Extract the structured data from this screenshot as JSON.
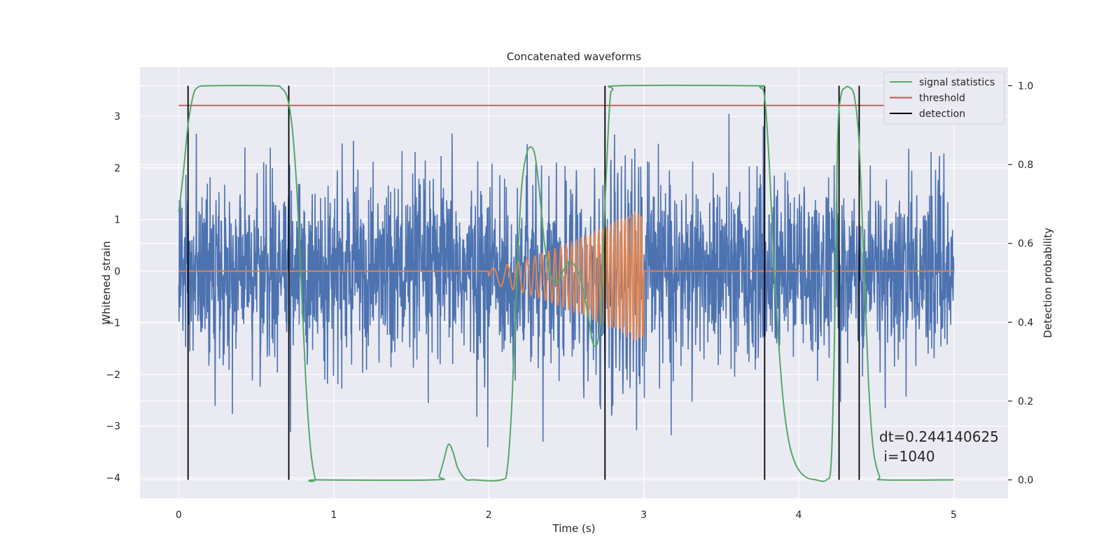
{
  "chart_data": {
    "type": "line",
    "title": "Concatenated waveforms",
    "xlabel": "Time (s)",
    "ylabel": "Whitened strain",
    "y2label": "Detection probability",
    "xlim": [
      -0.25,
      5.35
    ],
    "ylim": [
      -4.4,
      3.95
    ],
    "y2lim": [
      -0.047,
      1.047
    ],
    "xticks": [
      0,
      1,
      2,
      3,
      4,
      5
    ],
    "xtick_labels": [
      "0",
      "1",
      "2",
      "3",
      "4",
      "5"
    ],
    "yticks": [
      -4,
      -3,
      -2,
      -1,
      0,
      1,
      2,
      3
    ],
    "ytick_labels": [
      "−4",
      "−3",
      "−2",
      "−1",
      "0",
      "1",
      "2",
      "3"
    ],
    "y2ticks": [
      0.0,
      0.2,
      0.4,
      0.6,
      0.8,
      1.0
    ],
    "y2tick_labels": [
      "0.0",
      "0.2",
      "0.4",
      "0.6",
      "0.8",
      "1.0"
    ],
    "grid": true,
    "legend_position": "top-right",
    "legend": [
      {
        "label": "signal statistics",
        "color": "#55a868"
      },
      {
        "label": "threshold",
        "color": "#c44e52"
      },
      {
        "label": "detection",
        "color": "#000000"
      }
    ],
    "series": [
      {
        "name": "whitened strain",
        "color": "#4c72b0",
        "x_range": [
          0,
          5
        ],
        "typical_range": [
          -1.0,
          1.0
        ],
        "min": -4.0,
        "max": 3.55
      },
      {
        "name": "injected waveform",
        "color": "#dd8452",
        "x_range": [
          0,
          5
        ],
        "chirp_window": [
          2.0,
          3.0
        ],
        "peak_amplitude": 1.35
      },
      {
        "name": "signal statistics",
        "axis": "right",
        "color": "#55a868",
        "points": [
          [
            0.0,
            0.68
          ],
          [
            0.03,
            0.78
          ],
          [
            0.06,
            0.9
          ],
          [
            0.09,
            0.97
          ],
          [
            0.12,
            0.995
          ],
          [
            0.2,
            1.0
          ],
          [
            0.6,
            1.0
          ],
          [
            0.66,
            0.995
          ],
          [
            0.7,
            0.97
          ],
          [
            0.73,
            0.9
          ],
          [
            0.76,
            0.75
          ],
          [
            0.79,
            0.5
          ],
          [
            0.82,
            0.25
          ],
          [
            0.85,
            0.08
          ],
          [
            0.88,
            0.003
          ],
          [
            0.9,
            0.0
          ],
          [
            1.65,
            0.0
          ],
          [
            1.68,
            0.01
          ],
          [
            1.71,
            0.05
          ],
          [
            1.74,
            0.09
          ],
          [
            1.77,
            0.07
          ],
          [
            1.8,
            0.03
          ],
          [
            1.85,
            0.002
          ],
          [
            1.9,
            0.0
          ],
          [
            2.08,
            0.0
          ],
          [
            2.12,
            0.03
          ],
          [
            2.15,
            0.2
          ],
          [
            2.18,
            0.5
          ],
          [
            2.21,
            0.73
          ],
          [
            2.24,
            0.82
          ],
          [
            2.27,
            0.845
          ],
          [
            2.3,
            0.82
          ],
          [
            2.33,
            0.72
          ],
          [
            2.36,
            0.6
          ],
          [
            2.4,
            0.52
          ],
          [
            2.44,
            0.5
          ],
          [
            2.48,
            0.53
          ],
          [
            2.52,
            0.555
          ],
          [
            2.56,
            0.54
          ],
          [
            2.6,
            0.5
          ],
          [
            2.64,
            0.42
          ],
          [
            2.68,
            0.34
          ],
          [
            2.72,
            0.4
          ],
          [
            2.75,
            0.7
          ],
          [
            2.78,
            0.95
          ],
          [
            2.8,
            0.99
          ],
          [
            2.85,
            1.0
          ],
          [
            3.7,
            1.0
          ],
          [
            3.75,
            0.995
          ],
          [
            3.78,
            0.97
          ],
          [
            3.81,
            0.8
          ],
          [
            3.84,
            0.55
          ],
          [
            3.87,
            0.35
          ],
          [
            3.9,
            0.2
          ],
          [
            3.93,
            0.11
          ],
          [
            3.96,
            0.06
          ],
          [
            4.0,
            0.025
          ],
          [
            4.05,
            0.006
          ],
          [
            4.1,
            0.001
          ],
          [
            4.18,
            0.0
          ],
          [
            4.21,
            0.05
          ],
          [
            4.23,
            0.35
          ],
          [
            4.25,
            0.85
          ],
          [
            4.27,
            0.97
          ],
          [
            4.3,
            0.995
          ],
          [
            4.33,
            0.995
          ],
          [
            4.36,
            0.97
          ],
          [
            4.39,
            0.85
          ],
          [
            4.42,
            0.55
          ],
          [
            4.45,
            0.25
          ],
          [
            4.48,
            0.08
          ],
          [
            4.52,
            0.01
          ],
          [
            4.55,
            0.0
          ],
          [
            5.0,
            0.0
          ]
        ]
      },
      {
        "name": "threshold",
        "axis": "right",
        "color": "#c44e52",
        "x": [
          0,
          5
        ],
        "value": 0.95
      },
      {
        "name": "detection",
        "color": "#000000",
        "x": [
          0.06,
          0.71,
          2.75,
          3.78,
          4.26,
          4.39
        ]
      }
    ],
    "annotations": [
      "dt=0.244140625",
      " i=1040"
    ]
  }
}
